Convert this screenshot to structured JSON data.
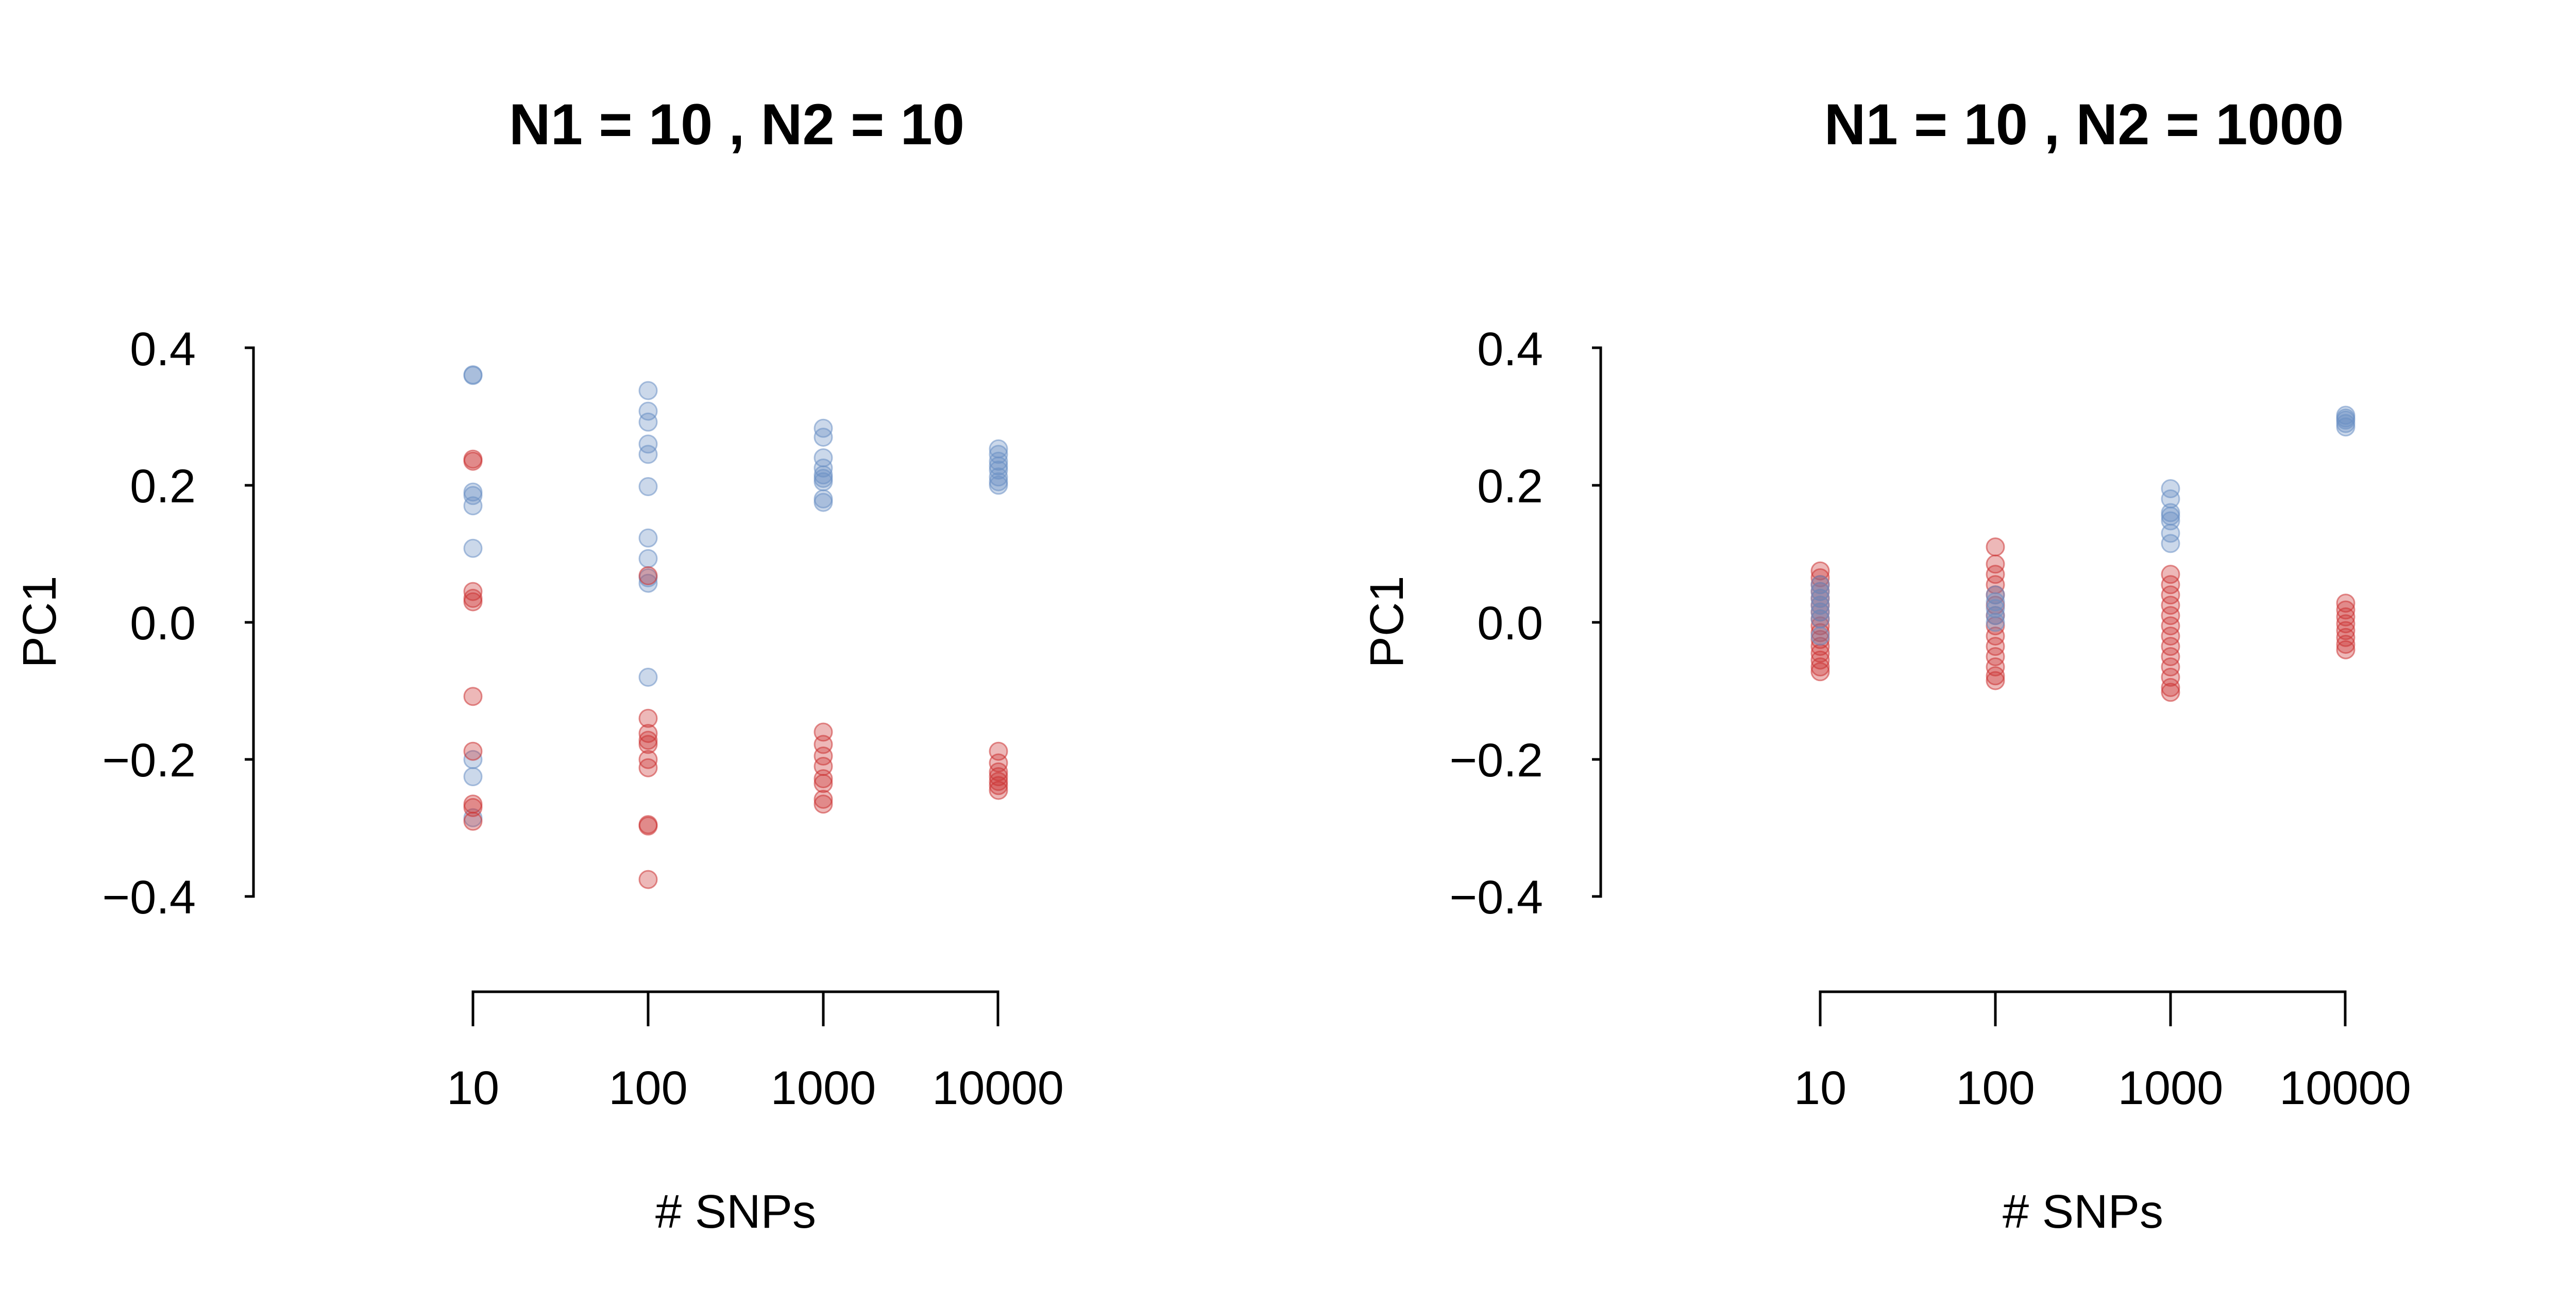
{
  "chart_data": [
    {
      "type": "scatter",
      "title": "N1 = 10 , N2 = 10",
      "xlabel": "# SNPs",
      "ylabel": "PC1",
      "x_scale": "log",
      "xticks": [
        "10",
        "100",
        "1000",
        "10000"
      ],
      "ylim": [
        -0.4,
        0.4
      ],
      "yticks": [
        "0.4",
        "0.2",
        "0.0",
        "−0.2",
        "−0.4"
      ],
      "grid": false,
      "legend": "none",
      "series": [
        {
          "color": "#6a8fc4",
          "points": [
            [
              10,
              0.36
            ],
            [
              10,
              0.361
            ],
            [
              10,
              0.19
            ],
            [
              10,
              0.185
            ],
            [
              10,
              0.17
            ],
            [
              10,
              0.108
            ],
            [
              10,
              -0.2
            ],
            [
              10,
              -0.225
            ],
            [
              10,
              -0.285
            ],
            [
              100,
              0.338
            ],
            [
              100,
              0.308
            ],
            [
              100,
              0.292
            ],
            [
              100,
              0.26
            ],
            [
              100,
              0.245
            ],
            [
              100,
              0.198
            ],
            [
              100,
              0.123
            ],
            [
              100,
              0.093
            ],
            [
              100,
              0.065
            ],
            [
              100,
              0.057
            ],
            [
              100,
              -0.08
            ],
            [
              1000,
              0.283
            ],
            [
              1000,
              0.27
            ],
            [
              1000,
              0.24
            ],
            [
              1000,
              0.225
            ],
            [
              1000,
              0.215
            ],
            [
              1000,
              0.21
            ],
            [
              1000,
              0.205
            ],
            [
              1000,
              0.18
            ],
            [
              1000,
              0.175
            ],
            [
              10000,
              0.253
            ],
            [
              10000,
              0.245
            ],
            [
              10000,
              0.235
            ],
            [
              10000,
              0.228
            ],
            [
              10000,
              0.222
            ],
            [
              10000,
              0.212
            ],
            [
              10000,
              0.205
            ],
            [
              10000,
              0.2
            ]
          ]
        },
        {
          "color": "#cc3333",
          "points": [
            [
              10,
              0.238
            ],
            [
              10,
              0.235
            ],
            [
              10,
              0.045
            ],
            [
              10,
              0.035
            ],
            [
              10,
              0.03
            ],
            [
              10,
              -0.108
            ],
            [
              10,
              -0.188
            ],
            [
              10,
              -0.265
            ],
            [
              10,
              -0.27
            ],
            [
              10,
              -0.29
            ],
            [
              100,
              0.068
            ],
            [
              100,
              -0.14
            ],
            [
              100,
              -0.162
            ],
            [
              100,
              -0.172
            ],
            [
              100,
              -0.178
            ],
            [
              100,
              -0.2
            ],
            [
              100,
              -0.212
            ],
            [
              100,
              -0.295
            ],
            [
              100,
              -0.297
            ],
            [
              100,
              -0.375
            ],
            [
              1000,
              -0.16
            ],
            [
              1000,
              -0.178
            ],
            [
              1000,
              -0.195
            ],
            [
              1000,
              -0.21
            ],
            [
              1000,
              -0.228
            ],
            [
              1000,
              -0.235
            ],
            [
              1000,
              -0.258
            ],
            [
              1000,
              -0.265
            ],
            [
              10000,
              -0.188
            ],
            [
              10000,
              -0.205
            ],
            [
              10000,
              -0.218
            ],
            [
              10000,
              -0.225
            ],
            [
              10000,
              -0.232
            ],
            [
              10000,
              -0.238
            ],
            [
              10000,
              -0.245
            ]
          ]
        }
      ]
    },
    {
      "type": "scatter",
      "title": "N1 = 10 , N2 = 1000",
      "xlabel": "# SNPs",
      "ylabel": "PC1",
      "x_scale": "log",
      "xticks": [
        "10",
        "100",
        "1000",
        "10000"
      ],
      "ylim": [
        -0.4,
        0.4
      ],
      "yticks": [
        "0.4",
        "0.2",
        "0.0",
        "−0.2",
        "−0.4"
      ],
      "grid": false,
      "legend": "none",
      "series": [
        {
          "color": "#cc3333",
          "points": [
            [
              10,
              0.075
            ],
            [
              10,
              0.065
            ],
            [
              10,
              0.055
            ],
            [
              10,
              0.045
            ],
            [
              10,
              0.035
            ],
            [
              10,
              0.025
            ],
            [
              10,
              0.015
            ],
            [
              10,
              0.005
            ],
            [
              10,
              -0.005
            ],
            [
              10,
              -0.015
            ],
            [
              10,
              -0.025
            ],
            [
              10,
              -0.035
            ],
            [
              10,
              -0.045
            ],
            [
              10,
              -0.055
            ],
            [
              10,
              -0.065
            ],
            [
              10,
              -0.072
            ],
            [
              100,
              0.11
            ],
            [
              100,
              0.085
            ],
            [
              100,
              0.07
            ],
            [
              100,
              0.055
            ],
            [
              100,
              0.04
            ],
            [
              100,
              0.025
            ],
            [
              100,
              0.01
            ],
            [
              100,
              -0.005
            ],
            [
              100,
              -0.02
            ],
            [
              100,
              -0.035
            ],
            [
              100,
              -0.05
            ],
            [
              100,
              -0.065
            ],
            [
              100,
              -0.078
            ],
            [
              100,
              -0.085
            ],
            [
              1000,
              0.07
            ],
            [
              1000,
              0.055
            ],
            [
              1000,
              0.04
            ],
            [
              1000,
              0.025
            ],
            [
              1000,
              0.01
            ],
            [
              1000,
              -0.005
            ],
            [
              1000,
              -0.02
            ],
            [
              1000,
              -0.035
            ],
            [
              1000,
              -0.05
            ],
            [
              1000,
              -0.065
            ],
            [
              1000,
              -0.08
            ],
            [
              1000,
              -0.095
            ],
            [
              1000,
              -0.102
            ],
            [
              10000,
              0.028
            ],
            [
              10000,
              0.018
            ],
            [
              10000,
              0.008
            ],
            [
              10000,
              -0.002
            ],
            [
              10000,
              -0.012
            ],
            [
              10000,
              -0.022
            ],
            [
              10000,
              -0.032
            ],
            [
              10000,
              -0.04
            ]
          ]
        },
        {
          "color": "#6a8fc4",
          "points": [
            [
              10,
              0.055
            ],
            [
              10,
              0.045
            ],
            [
              10,
              0.035
            ],
            [
              10,
              0.025
            ],
            [
              10,
              0.015
            ],
            [
              10,
              0.005
            ],
            [
              10,
              -0.02
            ],
            [
              100,
              0.04
            ],
            [
              100,
              0.03
            ],
            [
              100,
              0.02
            ],
            [
              100,
              0.01
            ],
            [
              100,
              0.0
            ],
            [
              1000,
              0.195
            ],
            [
              1000,
              0.18
            ],
            [
              1000,
              0.16
            ],
            [
              1000,
              0.155
            ],
            [
              1000,
              0.148
            ],
            [
              1000,
              0.13
            ],
            [
              1000,
              0.115
            ],
            [
              10000,
              0.302
            ],
            [
              10000,
              0.298
            ],
            [
              10000,
              0.295
            ],
            [
              10000,
              0.29
            ],
            [
              10000,
              0.285
            ]
          ]
        }
      ]
    }
  ]
}
